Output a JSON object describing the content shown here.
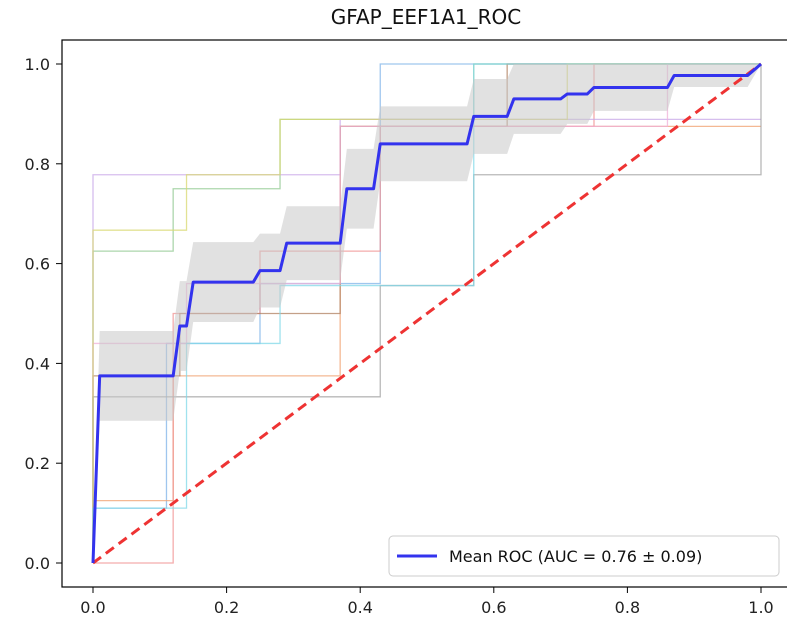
{
  "chart_data": {
    "type": "line",
    "title": "GFAP_EEF1A1_ROC",
    "xlabel": "",
    "ylabel": "",
    "xlim": [
      -0.04,
      1.04
    ],
    "ylim": [
      -0.05,
      1.05
    ],
    "x_ticks": [
      "0.0",
      "0.2",
      "0.4",
      "0.6",
      "0.8",
      "1.0"
    ],
    "y_ticks": [
      "0.0",
      "0.2",
      "0.4",
      "0.6",
      "0.8",
      "1.0"
    ],
    "grid": false,
    "legend_position": "lower-right",
    "legend_label": "Mean ROC (AUC = 0.76 ± 0.09)",
    "colors": {
      "mean": "#3333ee",
      "chance": "#ee3333",
      "band": "#c8c8c8"
    },
    "mean_roc": {
      "x": [
        0,
        0.01,
        0.12,
        0.13,
        0.14,
        0.15,
        0.24,
        0.25,
        0.28,
        0.29,
        0.37,
        0.38,
        0.42,
        0.43,
        0.56,
        0.57,
        0.62,
        0.63,
        0.7,
        0.71,
        0.74,
        0.75,
        0.86,
        0.87,
        0.98,
        1.0
      ],
      "y": [
        0,
        0.375,
        0.375,
        0.475,
        0.475,
        0.563,
        0.563,
        0.586,
        0.586,
        0.641,
        0.641,
        0.75,
        0.75,
        0.84,
        0.84,
        0.895,
        0.895,
        0.93,
        0.93,
        0.94,
        0.94,
        0.953,
        0.953,
        0.977,
        0.977,
        1.0
      ],
      "std_upper": [
        0,
        0.465,
        0.465,
        0.565,
        0.565,
        0.643,
        0.643,
        0.66,
        0.66,
        0.715,
        0.715,
        0.83,
        0.83,
        0.915,
        0.915,
        0.97,
        0.97,
        1.0,
        1.0,
        1.0,
        1.0,
        1.0,
        1.0,
        1.0,
        1.0,
        1.0
      ],
      "std_lower": [
        0,
        0.285,
        0.285,
        0.385,
        0.385,
        0.483,
        0.483,
        0.512,
        0.512,
        0.567,
        0.567,
        0.67,
        0.67,
        0.765,
        0.765,
        0.82,
        0.82,
        0.86,
        0.86,
        0.88,
        0.88,
        0.906,
        0.906,
        0.954,
        0.954,
        1.0
      ]
    },
    "chance_line": {
      "x": [
        0,
        1
      ],
      "y": [
        0,
        1
      ]
    },
    "folds": [
      {
        "color": "#7fb3e8",
        "x": [
          0,
          0,
          0.11,
          0.11,
          0.25,
          0.25,
          0.43,
          0.43,
          1
        ],
        "y": [
          0,
          0.11,
          0.11,
          0.44,
          0.44,
          0.56,
          0.56,
          1.0,
          1.0
        ]
      },
      {
        "color": "#f0a070",
        "x": [
          0,
          0,
          0.12,
          0.12,
          0.37,
          0.37,
          1
        ],
        "y": [
          0,
          0.125,
          0.125,
          0.375,
          0.375,
          0.875,
          0.875
        ]
      },
      {
        "color": "#90c890",
        "x": [
          0,
          0,
          0.12,
          0.12,
          0.28,
          0.28,
          0.57,
          0.57,
          0.87,
          0.87,
          1
        ],
        "y": [
          0,
          0.625,
          0.625,
          0.75,
          0.75,
          0.889,
          0.889,
          1.0,
          1.0,
          1.0,
          1.0
        ]
      },
      {
        "color": "#f09090",
        "x": [
          0,
          0,
          0.12,
          0.12,
          0.25,
          0.25,
          0.43,
          0.43,
          0.62,
          0.62,
          0.75,
          0.75,
          1
        ],
        "y": [
          0,
          0,
          0,
          0.5,
          0.5,
          0.625,
          0.625,
          0.875,
          0.875,
          0.875,
          0.875,
          1.0,
          1.0
        ]
      },
      {
        "color": "#c8a8e8",
        "x": [
          0,
          0,
          0.37,
          0.37,
          0.71,
          0.71,
          1
        ],
        "y": [
          0,
          0.778,
          0.778,
          0.889,
          0.889,
          0.889,
          0.889
        ]
      },
      {
        "color": "#b08060",
        "x": [
          0,
          0,
          0.13,
          0.13,
          0.37,
          0.37,
          0.62,
          0.62,
          1
        ],
        "y": [
          0,
          0.375,
          0.375,
          0.5,
          0.5,
          0.875,
          0.875,
          1.0,
          1.0
        ]
      },
      {
        "color": "#f0b0d8",
        "x": [
          0,
          0,
          0.14,
          0.14,
          0.37,
          0.37,
          0.86,
          0.86,
          1
        ],
        "y": [
          0,
          0.44,
          0.44,
          0.56,
          0.56,
          0.875,
          0.875,
          1.0,
          1.0
        ]
      },
      {
        "color": "#a0a0a0",
        "x": [
          0,
          0,
          0.43,
          0.43,
          0.57,
          0.57,
          1,
          1
        ],
        "y": [
          0,
          0.333,
          0.333,
          0.556,
          0.556,
          0.778,
          0.778,
          1.0
        ]
      },
      {
        "color": "#d8d870",
        "x": [
          0,
          0,
          0.14,
          0.14,
          0.28,
          0.28,
          0.71,
          0.71,
          1
        ],
        "y": [
          0,
          0.667,
          0.667,
          0.778,
          0.778,
          0.889,
          0.889,
          1.0,
          1.0
        ]
      },
      {
        "color": "#80d8e8",
        "x": [
          0,
          0,
          0.14,
          0.14,
          0.28,
          0.28,
          0.57,
          0.57,
          1
        ],
        "y": [
          0,
          0.11,
          0.11,
          0.44,
          0.44,
          0.556,
          0.556,
          1.0,
          1.0
        ]
      }
    ]
  }
}
